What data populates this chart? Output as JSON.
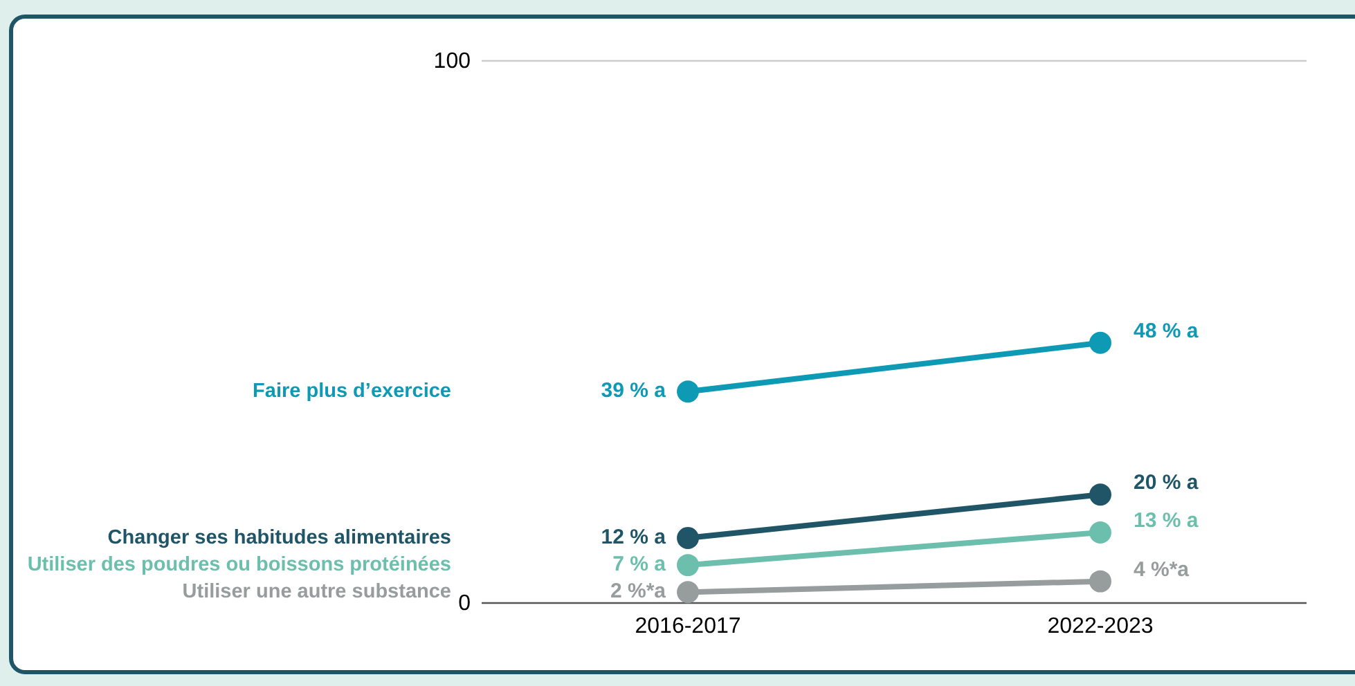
{
  "chart_data": {
    "type": "line",
    "categories": [
      "2016-2017",
      "2022-2023"
    ],
    "ylim": [
      0,
      100
    ],
    "yticks": [
      0,
      100
    ],
    "marker": "circle",
    "line_style": "solid",
    "series": [
      {
        "name": "Faire plus d’exercice",
        "color": "#0e9ab5",
        "values": [
          39,
          48
        ],
        "value_labels": [
          "39 % a",
          "48 % a"
        ]
      },
      {
        "name": "Changer ses habitudes alimentaires",
        "color": "#1f5566",
        "values": [
          12,
          20
        ],
        "value_labels": [
          "12 % a",
          "20 % a"
        ]
      },
      {
        "name": "Utiliser des poudres ou boissons protéinées",
        "color": "#6dbfad",
        "values": [
          7,
          13
        ],
        "value_labels": [
          "7 % a",
          "13 % a"
        ]
      },
      {
        "name": "Utiliser une autre substance",
        "color": "#979c9c",
        "values": [
          2,
          4
        ],
        "value_labels": [
          "2 %*a",
          "4 %*a"
        ]
      }
    ]
  }
}
